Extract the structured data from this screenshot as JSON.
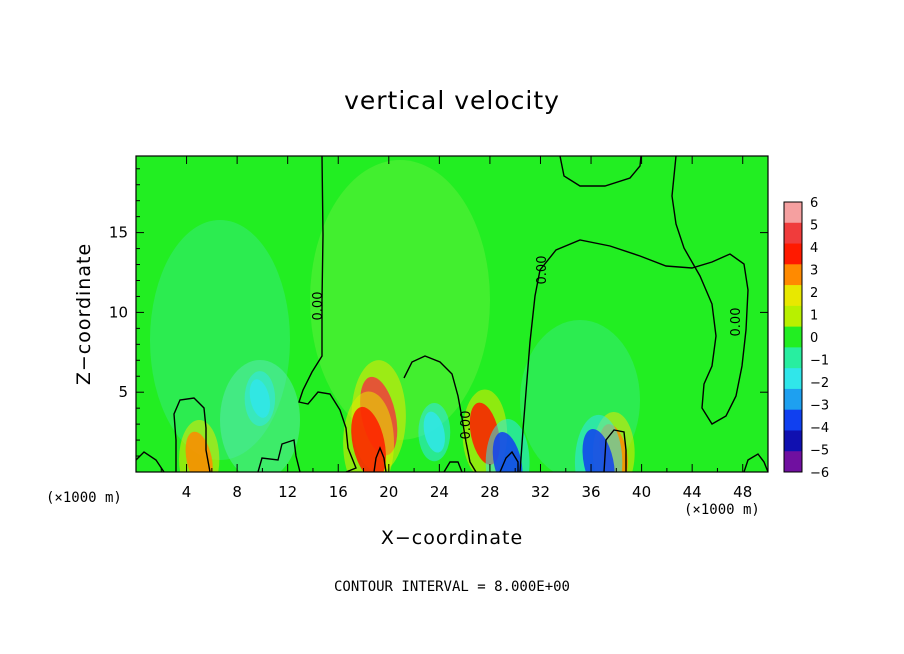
{
  "chart_data": {
    "type": "heatmap",
    "title": "vertical velocity",
    "xlabel": "X−coordinate",
    "ylabel": "Z−coordinate",
    "x_unit": "(×1000 m)",
    "xlim": [
      0,
      50
    ],
    "ylim": [
      0,
      19.8
    ],
    "x_ticks": [
      4,
      8,
      12,
      16,
      20,
      24,
      28,
      32,
      36,
      40,
      44,
      48
    ],
    "y_ticks": [
      5,
      10,
      15
    ],
    "colorbar": {
      "ticks": [
        "6",
        "5",
        "4",
        "3",
        "2",
        "1",
        "0",
        "−1",
        "−2",
        "−3",
        "−4",
        "−5",
        "−6"
      ],
      "range": [
        -6,
        6
      ]
    },
    "contour_label": "0.00",
    "contour_interval_text": "CONTOUR INTERVAL = 8.000E+00",
    "features": [
      {
        "x": 19.2,
        "z": 3.5,
        "value": 5.0
      },
      {
        "x": 18.4,
        "z": 1.8,
        "value": 4.5
      },
      {
        "x": 27.6,
        "z": 2.4,
        "value": 3.6
      },
      {
        "x": 37.8,
        "z": 1.2,
        "value": 3.2
      },
      {
        "x": 29.4,
        "z": 0.6,
        "value": -3.5
      },
      {
        "x": 36.6,
        "z": 0.6,
        "value": -4.0
      },
      {
        "x": 9.8,
        "z": 4.6,
        "value": -1.6
      },
      {
        "x": 23.6,
        "z": 2.5,
        "value": -1.8
      },
      {
        "x": 5.0,
        "z": 0.8,
        "value": 3.0
      }
    ]
  }
}
